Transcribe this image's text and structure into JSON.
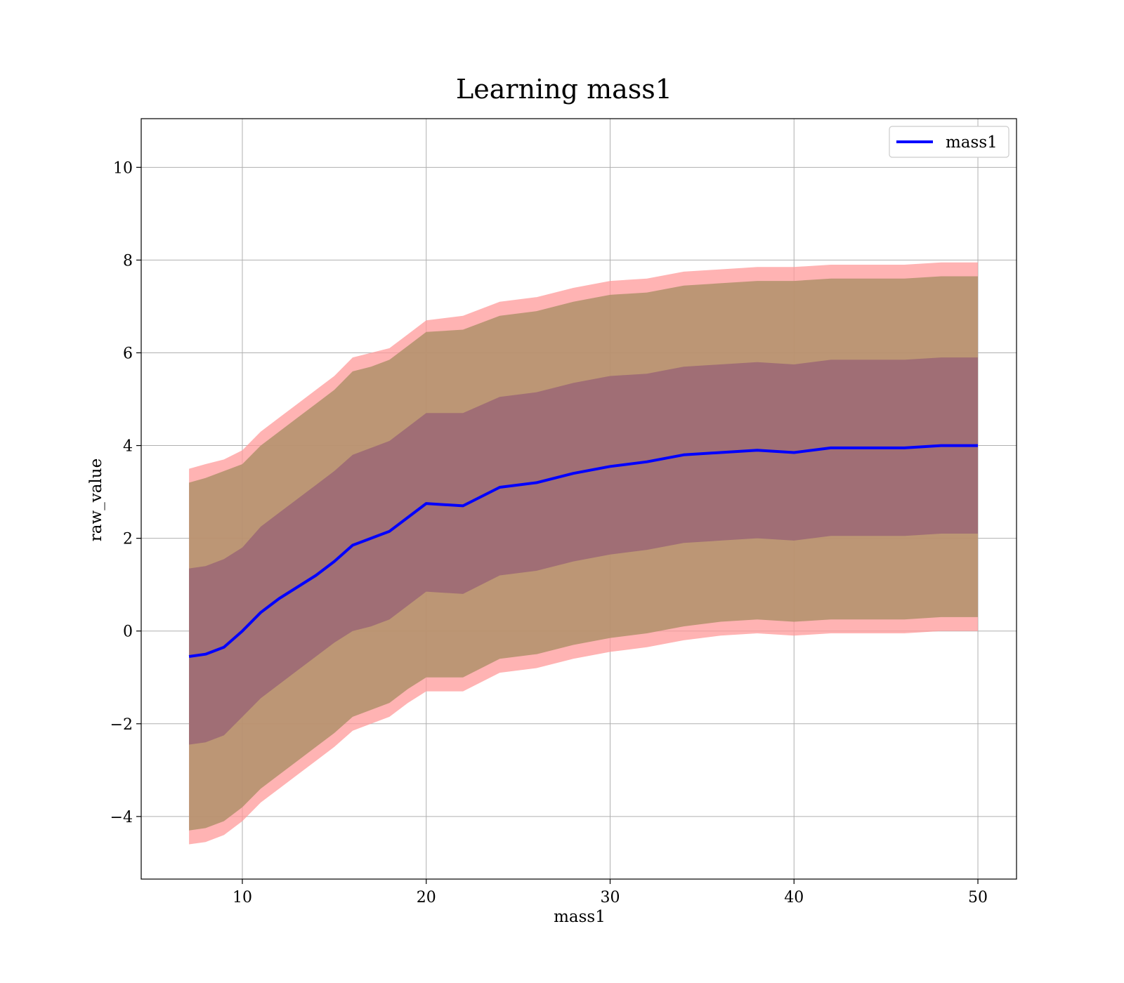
{
  "chart_data": {
    "type": "area",
    "title": "Learning mass1",
    "xlabel": "mass1",
    "ylabel": "raw_value",
    "xlim": [
      4.5,
      52.1
    ],
    "ylim": [
      -5.35,
      11.05
    ],
    "xticks": [
      10,
      20,
      30,
      40,
      50
    ],
    "yticks": [
      -4,
      -2,
      0,
      2,
      4,
      6,
      8,
      10
    ],
    "xtick_labels": [
      "10",
      "20",
      "30",
      "40",
      "50"
    ],
    "ytick_labels": [
      "−4",
      "−2",
      "0",
      "2",
      "4",
      "6",
      "8",
      "10"
    ],
    "grid": true,
    "legend": {
      "placement": "top-right",
      "entries": [
        "mass1"
      ]
    },
    "colors": {
      "mean_line": "#0000ff",
      "outer_band": "#ff9999",
      "middle_band": "#b0906a",
      "inner_band": "#9e6b75",
      "grid": "#b0b0b0"
    },
    "series": [
      {
        "name": "mass1",
        "role": "mean",
        "x": [
          7.1,
          8,
          9,
          10,
          11,
          12,
          13,
          14,
          15,
          16,
          17,
          18,
          19,
          20,
          22,
          24,
          26,
          28,
          30,
          32,
          34,
          36,
          38,
          40,
          42,
          44,
          46,
          48,
          50
        ],
        "y": [
          -0.55,
          -0.5,
          -0.35,
          0.0,
          0.4,
          0.7,
          0.95,
          1.2,
          1.5,
          1.85,
          2.0,
          2.15,
          2.45,
          2.75,
          2.7,
          3.1,
          3.2,
          3.4,
          3.55,
          3.65,
          3.8,
          3.85,
          3.9,
          3.85,
          3.95,
          3.95,
          3.95,
          4.0,
          4.0
        ]
      }
    ],
    "bands": [
      {
        "level": "outer",
        "x": [
          7.1,
          8,
          9,
          10,
          11,
          12,
          13,
          14,
          15,
          16,
          17,
          18,
          19,
          20,
          22,
          24,
          26,
          28,
          30,
          32,
          34,
          36,
          38,
          40,
          42,
          44,
          46,
          48,
          50
        ],
        "upper": [
          3.5,
          3.6,
          3.7,
          3.9,
          4.3,
          4.6,
          4.9,
          5.2,
          5.5,
          5.9,
          6.0,
          6.1,
          6.4,
          6.7,
          6.8,
          7.1,
          7.2,
          7.4,
          7.55,
          7.6,
          7.75,
          7.8,
          7.85,
          7.85,
          7.9,
          7.9,
          7.9,
          7.95,
          7.95
        ],
        "lower": [
          -4.6,
          -4.55,
          -4.4,
          -4.1,
          -3.7,
          -3.4,
          -3.1,
          -2.8,
          -2.5,
          -2.15,
          -2.0,
          -1.85,
          -1.55,
          -1.3,
          -1.3,
          -0.9,
          -0.8,
          -0.6,
          -0.45,
          -0.35,
          -0.2,
          -0.1,
          -0.05,
          -0.1,
          -0.05,
          -0.05,
          -0.05,
          0.0,
          0.0
        ]
      },
      {
        "level": "middle",
        "x": [
          7.1,
          8,
          9,
          10,
          11,
          12,
          13,
          14,
          15,
          16,
          17,
          18,
          19,
          20,
          22,
          24,
          26,
          28,
          30,
          32,
          34,
          36,
          38,
          40,
          42,
          44,
          46,
          48,
          50
        ],
        "upper": [
          3.2,
          3.3,
          3.45,
          3.6,
          4.0,
          4.3,
          4.6,
          4.9,
          5.2,
          5.6,
          5.7,
          5.85,
          6.15,
          6.45,
          6.5,
          6.8,
          6.9,
          7.1,
          7.25,
          7.3,
          7.45,
          7.5,
          7.55,
          7.55,
          7.6,
          7.6,
          7.6,
          7.65,
          7.65
        ],
        "lower": [
          -4.3,
          -4.25,
          -4.1,
          -3.8,
          -3.4,
          -3.1,
          -2.8,
          -2.5,
          -2.2,
          -1.85,
          -1.7,
          -1.55,
          -1.25,
          -1.0,
          -1.0,
          -0.6,
          -0.5,
          -0.3,
          -0.15,
          -0.05,
          0.1,
          0.2,
          0.25,
          0.2,
          0.25,
          0.25,
          0.25,
          0.3,
          0.3
        ]
      },
      {
        "level": "inner",
        "x": [
          7.1,
          8,
          9,
          10,
          11,
          12,
          13,
          14,
          15,
          16,
          17,
          18,
          19,
          20,
          22,
          24,
          26,
          28,
          30,
          32,
          34,
          36,
          38,
          40,
          42,
          44,
          46,
          48,
          50
        ],
        "upper": [
          1.35,
          1.4,
          1.55,
          1.8,
          2.25,
          2.55,
          2.85,
          3.15,
          3.45,
          3.8,
          3.95,
          4.1,
          4.4,
          4.7,
          4.7,
          5.05,
          5.15,
          5.35,
          5.5,
          5.55,
          5.7,
          5.75,
          5.8,
          5.75,
          5.85,
          5.85,
          5.85,
          5.9,
          5.9
        ],
        "lower": [
          -2.45,
          -2.4,
          -2.25,
          -1.85,
          -1.45,
          -1.15,
          -0.85,
          -0.55,
          -0.25,
          0.0,
          0.1,
          0.25,
          0.55,
          0.85,
          0.8,
          1.2,
          1.3,
          1.5,
          1.65,
          1.75,
          1.9,
          1.95,
          2.0,
          1.95,
          2.05,
          2.05,
          2.05,
          2.1,
          2.1
        ]
      }
    ]
  }
}
